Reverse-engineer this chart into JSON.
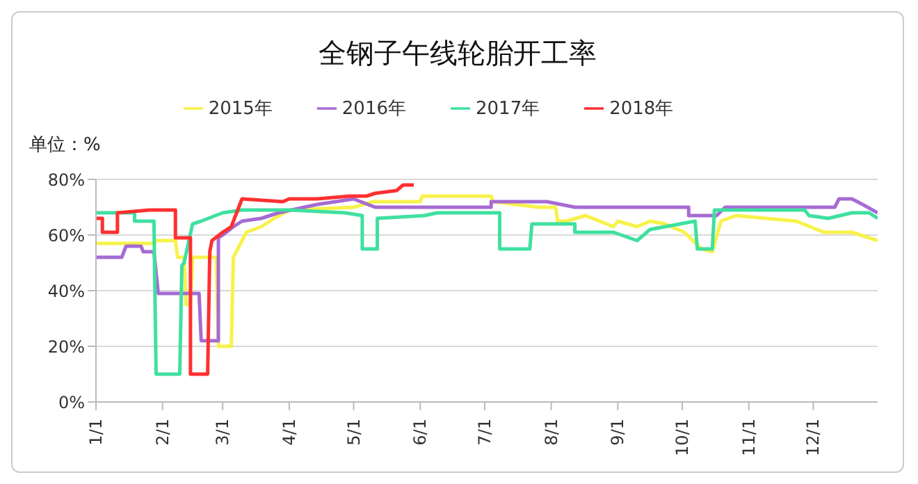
{
  "chart_data": {
    "type": "line",
    "title": "全钢子午线轮胎开工率",
    "annotations": [
      "单位：%"
    ],
    "xlim": [
      "--01-01",
      "--12-31"
    ],
    "xticks": [
      {
        "value": "--01-01",
        "label": "1/1"
      },
      {
        "value": "--02-01",
        "label": "2/1"
      },
      {
        "value": "--03-01",
        "label": "3/1"
      },
      {
        "value": "--04-01",
        "label": "4/1"
      },
      {
        "value": "--05-01",
        "label": "5/1"
      },
      {
        "value": "--06-01",
        "label": "6/1"
      },
      {
        "value": "--07-01",
        "label": "7/1"
      },
      {
        "value": "--08-01",
        "label": "8/1"
      },
      {
        "value": "--09-01",
        "label": "9/1"
      },
      {
        "value": "--10-01",
        "label": "10/1"
      },
      {
        "value": "--11-01",
        "label": "11/1"
      },
      {
        "value": "--12-01",
        "label": "12/1"
      }
    ],
    "ylim": [
      0,
      80
    ],
    "yticks": [
      {
        "value": 0,
        "label": "0%"
      },
      {
        "value": 20,
        "label": "20%"
      },
      {
        "value": 40,
        "label": "40%"
      },
      {
        "value": 60,
        "label": "60%"
      },
      {
        "value": 80,
        "label": "80%"
      }
    ],
    "grid": "y",
    "legend": "top",
    "line_style": "solid",
    "series": [
      {
        "name": "2015年",
        "color": "#f7f24a",
        "x": [
          "--01-01",
          "--01-28",
          "--01-29",
          "--02-07",
          "--02-08",
          "--02-11",
          "--02-12",
          "--02-14",
          "--02-15",
          "--02-26",
          "--02-27",
          "--03-05",
          "--03-06",
          "--03-12",
          "--03-19",
          "--03-25",
          "--04-01",
          "--05-01",
          "--05-10",
          "--06-01",
          "--06-02",
          "--07-04",
          "--07-05",
          "--07-26",
          "--08-03",
          "--08-04",
          "--08-08",
          "--08-17",
          "--08-30",
          "--09-01",
          "--09-10",
          "--09-16",
          "--09-23",
          "--10-02",
          "--10-10",
          "--10-15",
          "--10-19",
          "--10-26",
          "--11-23",
          "--12-06",
          "--12-19",
          "--12-31"
        ],
        "values": [
          57,
          57,
          58,
          58,
          52,
          52,
          35,
          35,
          52,
          52,
          20,
          20,
          52,
          61,
          63,
          66,
          69,
          70,
          72,
          72,
          74,
          74,
          72,
          70,
          70,
          65,
          65,
          67,
          63,
          65,
          63,
          65,
          64,
          61,
          55,
          54,
          65,
          67,
          65,
          61,
          61,
          58
        ]
      },
      {
        "name": "2016年",
        "color": "#a66bd3",
        "x": [
          "--01-01",
          "--01-13",
          "--01-15",
          "--01-22",
          "--01-23",
          "--01-28",
          "--01-30",
          "--02-18",
          "--02-19",
          "--02-27",
          "--02-27",
          "--03-01",
          "--03-06",
          "--03-10",
          "--03-19",
          "--03-27",
          "--04-14",
          "--05-01",
          "--05-11",
          "--07-04",
          "--07-04",
          "--07-30",
          "--08-12",
          "--09-03",
          "--10-04",
          "--10-04",
          "--10-17",
          "--10-21",
          "--12-11",
          "--12-13",
          "--12-19",
          "--12-24",
          "--12-31"
        ],
        "values": [
          52,
          52,
          56,
          56,
          54,
          54,
          39,
          39,
          22,
          22,
          59,
          60,
          63,
          65,
          66,
          68,
          71,
          73,
          70,
          70,
          72,
          72,
          70,
          70,
          70,
          67,
          67,
          70,
          70,
          73,
          73,
          71,
          68
        ]
      },
      {
        "name": "2017年",
        "color": "#3fe0a0",
        "x": [
          "--01-01",
          "--01-19",
          "--01-19",
          "--01-28",
          "--01-29",
          "--02-09",
          "--02-10",
          "--02-11",
          "--02-15",
          "--02-19",
          "--03-01",
          "--03-10",
          "--04-01",
          "--04-27",
          "--05-05",
          "--05-05",
          "--05-12",
          "--05-12",
          "--06-03",
          "--06-09",
          "--07-08",
          "--07-08",
          "--07-22",
          "--07-23",
          "--08-12",
          "--08-12",
          "--08-30",
          "--09-10",
          "--09-16",
          "--09-23",
          "--10-07",
          "--10-08",
          "--10-15",
          "--10-16",
          "--11-27",
          "--11-29",
          "--12-08",
          "--12-19",
          "--12-27",
          "--12-31"
        ],
        "values": [
          68,
          68,
          65,
          65,
          10,
          10,
          49,
          50,
          64,
          65,
          68,
          69,
          69,
          68,
          67,
          55,
          55,
          66,
          67,
          68,
          68,
          55,
          55,
          64,
          64,
          61,
          61,
          58,
          62,
          63,
          65,
          55,
          55,
          69,
          69,
          67,
          66,
          68,
          68,
          66
        ]
      },
      {
        "name": "2018年",
        "color": "#ff3030",
        "x": [
          "--01-01",
          "--01-04",
          "--01-04",
          "--01-11",
          "--01-11",
          "--01-26",
          "--02-07",
          "--02-07",
          "--02-14",
          "--02-14",
          "--02-22",
          "--02-23",
          "--02-24",
          "--03-01",
          "--03-05",
          "--03-10",
          "--03-29",
          "--04-01",
          "--04-14",
          "--04-29",
          "--05-07",
          "--05-11",
          "--05-21",
          "--05-24",
          "--05-29"
        ],
        "values": [
          66,
          66,
          61,
          61,
          68,
          69,
          69,
          59,
          59,
          10,
          10,
          54,
          58,
          61,
          63,
          73,
          72,
          73,
          73,
          74,
          74,
          75,
          76,
          78,
          78
        ]
      }
    ]
  }
}
